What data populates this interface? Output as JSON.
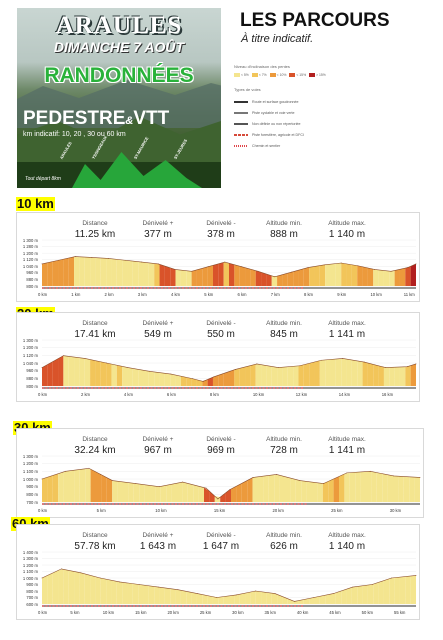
{
  "poster": {
    "title": "ARAULES",
    "date": "DIMANCHE 7 AOÛT",
    "activity": "RANDONNÉES",
    "types_main": "PEDESTRE",
    "types_amp": "&",
    "types_end": "VTT",
    "distances_text": "km indicatif: 10, 20 , 30 ou 60 km",
    "start_text": "Tout départ 8km",
    "villages": [
      "ARAULES",
      "YSSINGEAUX",
      "ST-MAURICE",
      "ST-JEURES"
    ]
  },
  "header": {
    "title": "LES PARCOURS",
    "subtitle": "À titre indicatif."
  },
  "legend": {
    "incline_title": "Niveau d'inclinaison des pentes",
    "incline": [
      {
        "label": "< 5%",
        "color": "#f4e58f"
      },
      {
        "label": "< 7%",
        "color": "#f2c55a"
      },
      {
        "label": "< 10%",
        "color": "#ec9a3c"
      },
      {
        "label": "< 15%",
        "color": "#d9532a"
      },
      {
        "label": "> 15%",
        "color": "#b21f1f"
      }
    ],
    "ways_title": "Types de voies",
    "ways": [
      {
        "label": "Route et surface goudronnée",
        "color": "#333333",
        "style": "solid"
      },
      {
        "label": "Piste cyclable et voie verte",
        "color": "#777777",
        "style": "solid"
      },
      {
        "label": "Non définie ou non répertoriée",
        "color": "#555555",
        "style": "solid"
      },
      {
        "label": "Piste forestière, agricole et DFCI",
        "color": "#d64a3a",
        "style": "dashed"
      },
      {
        "label": "Chemin et sentier",
        "color": "#e0464a",
        "style": "dotted"
      }
    ]
  },
  "routes": [
    {
      "km_label": "10 km",
      "stats": {
        "distance_label": "Distance",
        "distance": "11.25 km",
        "dplus_label": "Dénivelé +",
        "dplus": "377 m",
        "dminus_label": "Dénivelé -",
        "dminus": "378 m",
        "altmin_label": "Altitude min.",
        "altmin": "888 m",
        "altmax_label": "Altitude max.",
        "altmax": "1 140 m"
      },
      "y_ticks": [
        "1 300 m",
        "1 280 m",
        "1 200 m",
        "1 120 m",
        "1 040 m",
        "960 m",
        "880 m",
        "800 m"
      ],
      "x_ticks": [
        "0 km",
        "1 km",
        "2 km",
        "3 km",
        "4 km",
        "5 km",
        "6 km",
        "7 km",
        "8 km",
        "9 km",
        "10 km",
        "11 km"
      ],
      "chart_data": {
        "type": "area",
        "xlabel": "",
        "ylabel": "",
        "xlim": [
          0,
          11.25
        ],
        "ylim": [
          800,
          1300
        ],
        "x": [
          0,
          0.5,
          1,
          1.5,
          2,
          2.5,
          3,
          3.5,
          4,
          4.5,
          5,
          5.5,
          6,
          6.5,
          7,
          7.5,
          8,
          8.5,
          9,
          9.5,
          10,
          10.5,
          11,
          11.25
        ],
        "values": [
          1040,
          1080,
          1120,
          1110,
          1100,
          1080,
          1060,
          1040,
          980,
          960,
          1010,
          1060,
          1010,
          960,
          900,
          950,
          1000,
          1030,
          1050,
          1020,
          980,
          960,
          1000,
          1040
        ]
      }
    },
    {
      "km_label": "20 km",
      "stats": {
        "distance_label": "Distance",
        "distance": "17.41 km",
        "dplus_label": "Dénivelé +",
        "dplus": "549 m",
        "dminus_label": "Dénivelé -",
        "dminus": "550 m",
        "altmin_label": "Altitude min.",
        "altmin": "845 m",
        "altmax_label": "Altitude max.",
        "altmax": "1 141 m"
      },
      "y_ticks": [
        "1 300 m",
        "1 200 m",
        "1 120 m",
        "1 040 m",
        "960 m",
        "880 m",
        "800 m"
      ],
      "x_ticks": [
        "0 km",
        "2 km",
        "4 km",
        "6 km",
        "8 km",
        "10 km",
        "12 km",
        "14 km",
        "16 km"
      ],
      "chart_data": {
        "type": "area",
        "xlabel": "",
        "ylabel": "",
        "xlim": [
          0,
          17.41
        ],
        "ylim": [
          800,
          1300
        ],
        "x": [
          0,
          1,
          2,
          3,
          4,
          5,
          6,
          7,
          7.5,
          8,
          9,
          10,
          11,
          12,
          13,
          14,
          15,
          16,
          17,
          17.41
        ],
        "values": [
          1000,
          1130,
          1100,
          1050,
          1000,
          960,
          930,
          880,
          850,
          900,
          980,
          1040,
          1000,
          1020,
          1080,
          1100,
          1060,
          1000,
          1010,
          1040
        ]
      }
    },
    {
      "km_label": "30 km",
      "stats": {
        "distance_label": "Distance",
        "distance": "32.24 km",
        "dplus_label": "Dénivelé +",
        "dplus": "967 m",
        "dminus_label": "Dénivelé -",
        "dminus": "969 m",
        "altmin_label": "Altitude min.",
        "altmin": "728 m",
        "altmax_label": "Altitude max.",
        "altmax": "1 141 m"
      },
      "y_ticks": [
        "1 300 m",
        "1 200 m",
        "1 100 m",
        "1 000 m",
        "900 m",
        "800 m",
        "700 m"
      ],
      "x_ticks": [
        "0 km",
        "5 km",
        "10 km",
        "15 km",
        "20 km",
        "25 km",
        "30 km"
      ],
      "chart_data": {
        "type": "area",
        "xlabel": "",
        "ylabel": "",
        "xlim": [
          0,
          32.24
        ],
        "ylim": [
          700,
          1300
        ],
        "x": [
          0,
          2,
          4,
          5,
          6,
          8,
          10,
          12,
          14,
          15,
          16,
          18,
          20,
          22,
          24,
          26,
          28,
          30,
          32.24
        ],
        "values": [
          1000,
          1100,
          1140,
          1060,
          980,
          940,
          900,
          960,
          880,
          740,
          860,
          1020,
          1060,
          980,
          940,
          1080,
          1100,
          1040,
          1020
        ]
      }
    },
    {
      "km_label": "60 km",
      "stats": {
        "distance_label": "Distance",
        "distance": "57.78 km",
        "dplus_label": "Dénivelé +",
        "dplus": "1 643 m",
        "dminus_label": "Dénivelé -",
        "dminus": "1 647 m",
        "altmin_label": "Altitude min.",
        "altmin": "626 m",
        "altmax_label": "Altitude max.",
        "altmax": "1 140 m"
      },
      "y_ticks": [
        "1 400 m",
        "1 300 m",
        "1 200 m",
        "1 100 m",
        "1 000 m",
        "900 m",
        "800 m",
        "700 m",
        "600 m"
      ],
      "x_ticks": [
        "0 km",
        "5 km",
        "10 km",
        "15 km",
        "20 km",
        "25 km",
        "30 km",
        "35 km",
        "40 km",
        "45 km",
        "50 km",
        "55 km"
      ],
      "chart_data": {
        "type": "area",
        "xlabel": "",
        "ylabel": "",
        "xlim": [
          0,
          57.78
        ],
        "ylim": [
          600,
          1400
        ],
        "x": [
          0,
          3,
          6,
          9,
          12,
          15,
          18,
          21,
          24,
          27,
          30,
          33,
          36,
          39,
          42,
          45,
          48,
          51,
          54,
          57.78
        ],
        "values": [
          1000,
          1140,
          1080,
          1000,
          940,
          900,
          860,
          820,
          760,
          700,
          740,
          800,
          760,
          640,
          700,
          760,
          860,
          900,
          1000,
          1040
        ]
      }
    }
  ]
}
